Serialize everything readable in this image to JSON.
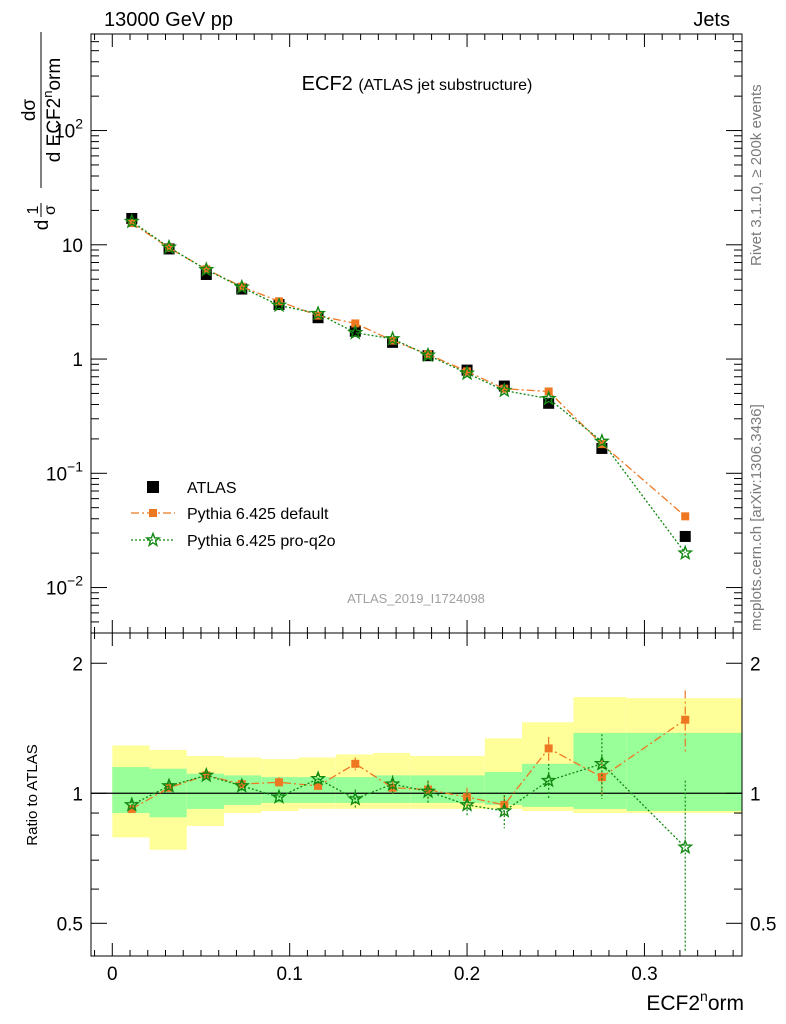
{
  "header": {
    "left": "13000 GeV pp",
    "right": "Jets"
  },
  "side_labels": {
    "rivet": "Rivet 3.1.10, ≥ 200k events",
    "mcplots": "mcplots.cern.ch [arXiv:1306.3436]"
  },
  "chart_data": {
    "type": "scatter",
    "title": "ECF2",
    "subtitle": "(ATLAS jet substructure)",
    "watermark": "ATLAS_2019_I1724098",
    "xlabel": "ECF2^norm",
    "ylabel": "1/σ dσ/d ECF2^norm",
    "ratio_ylabel": "Ratio to ATLAS",
    "xlim": [
      -0.012,
      0.355
    ],
    "ylim": [
      0.004,
      700
    ],
    "yscale": "log",
    "ratio_ylim": [
      0.42,
      2.35
    ],
    "ratio_yscale": "log",
    "x_ticks": [
      0,
      0.1,
      0.2,
      0.3
    ],
    "x_tick_labels": [
      "0",
      "0.1",
      "0.2",
      "0.3"
    ],
    "y_ticks": [
      {
        "value": 0.01,
        "base": "10",
        "exp": "−2"
      },
      {
        "value": 0.1,
        "base": "10",
        "exp": "−1"
      },
      {
        "value": 1,
        "base": "1",
        "exp": ""
      },
      {
        "value": 10,
        "base": "10",
        "exp": ""
      },
      {
        "value": 100,
        "base": "10",
        "exp": "2"
      }
    ],
    "ratio_ticks": [
      {
        "value": 0.5,
        "label": "0.5"
      },
      {
        "value": 1,
        "label": "1"
      },
      {
        "value": 2,
        "label": "2"
      }
    ],
    "bin_edges": [
      0,
      0.021,
      0.042,
      0.063,
      0.084,
      0.105,
      0.126,
      0.147,
      0.168,
      0.189,
      0.21,
      0.231,
      0.26,
      0.29,
      0.355
    ],
    "x": [
      0.011,
      0.032,
      0.053,
      0.073,
      0.094,
      0.116,
      0.137,
      0.158,
      0.178,
      0.2,
      0.221,
      0.246,
      0.276,
      0.323
    ],
    "band_stat_lo": [
      0.9,
      0.88,
      0.92,
      0.94,
      0.95,
      0.95,
      0.95,
      0.95,
      0.95,
      0.95,
      0.94,
      0.93,
      0.92,
      0.91
    ],
    "band_stat_hi": [
      1.15,
      1.14,
      1.11,
      1.1,
      1.09,
      1.09,
      1.09,
      1.1,
      1.1,
      1.1,
      1.12,
      1.17,
      1.38,
      1.38
    ],
    "band_tot_lo": [
      0.79,
      0.74,
      0.84,
      0.9,
      0.91,
      0.92,
      0.92,
      0.92,
      0.92,
      0.92,
      0.92,
      0.91,
      0.9,
      0.9
    ],
    "band_tot_hi": [
      1.29,
      1.26,
      1.22,
      1.21,
      1.2,
      1.21,
      1.23,
      1.24,
      1.22,
      1.22,
      1.34,
      1.46,
      1.67,
      1.66
    ],
    "series": [
      {
        "name": "ATLAS",
        "color": "#000000",
        "marker": "square",
        "values": [
          17,
          9.2,
          5.5,
          4.1,
          3.0,
          2.3,
          1.75,
          1.4,
          1.07,
          0.8,
          0.58,
          0.41,
          0.165,
          0.028
        ]
      },
      {
        "name": "Pythia 6.425 default",
        "color": "#ee7722",
        "marker": "square",
        "line": "dashdot",
        "values": [
          15.5,
          9.4,
          6.1,
          4.3,
          3.2,
          2.4,
          2.05,
          1.45,
          1.1,
          0.78,
          0.55,
          0.52,
          0.18,
          0.042
        ],
        "ratio": [
          0.92,
          1.03,
          1.1,
          1.05,
          1.06,
          1.04,
          1.17,
          1.03,
          1.02,
          0.98,
          0.94,
          1.27,
          1.09,
          1.48
        ],
        "ratio_err": [
          0.02,
          0.02,
          0.02,
          0.03,
          0.03,
          0.03,
          0.04,
          0.04,
          0.05,
          0.05,
          0.05,
          0.08,
          0.1,
          0.25
        ]
      },
      {
        "name": "Pythia 6.425 pro-q2o",
        "color": "#118811",
        "marker": "star",
        "line": "dotted",
        "values": [
          16,
          9.5,
          6.05,
          4.25,
          2.95,
          2.5,
          1.7,
          1.5,
          1.08,
          0.75,
          0.53,
          0.45,
          0.19,
          0.02
        ],
        "ratio": [
          0.94,
          1.04,
          1.1,
          1.04,
          0.98,
          1.08,
          0.97,
          1.05,
          1.01,
          0.94,
          0.91,
          1.07,
          1.17,
          0.75
        ],
        "ratio_err": [
          0.02,
          0.02,
          0.02,
          0.03,
          0.03,
          0.03,
          0.05,
          0.05,
          0.06,
          0.06,
          0.08,
          0.1,
          0.2,
          0.32
        ]
      }
    ]
  }
}
